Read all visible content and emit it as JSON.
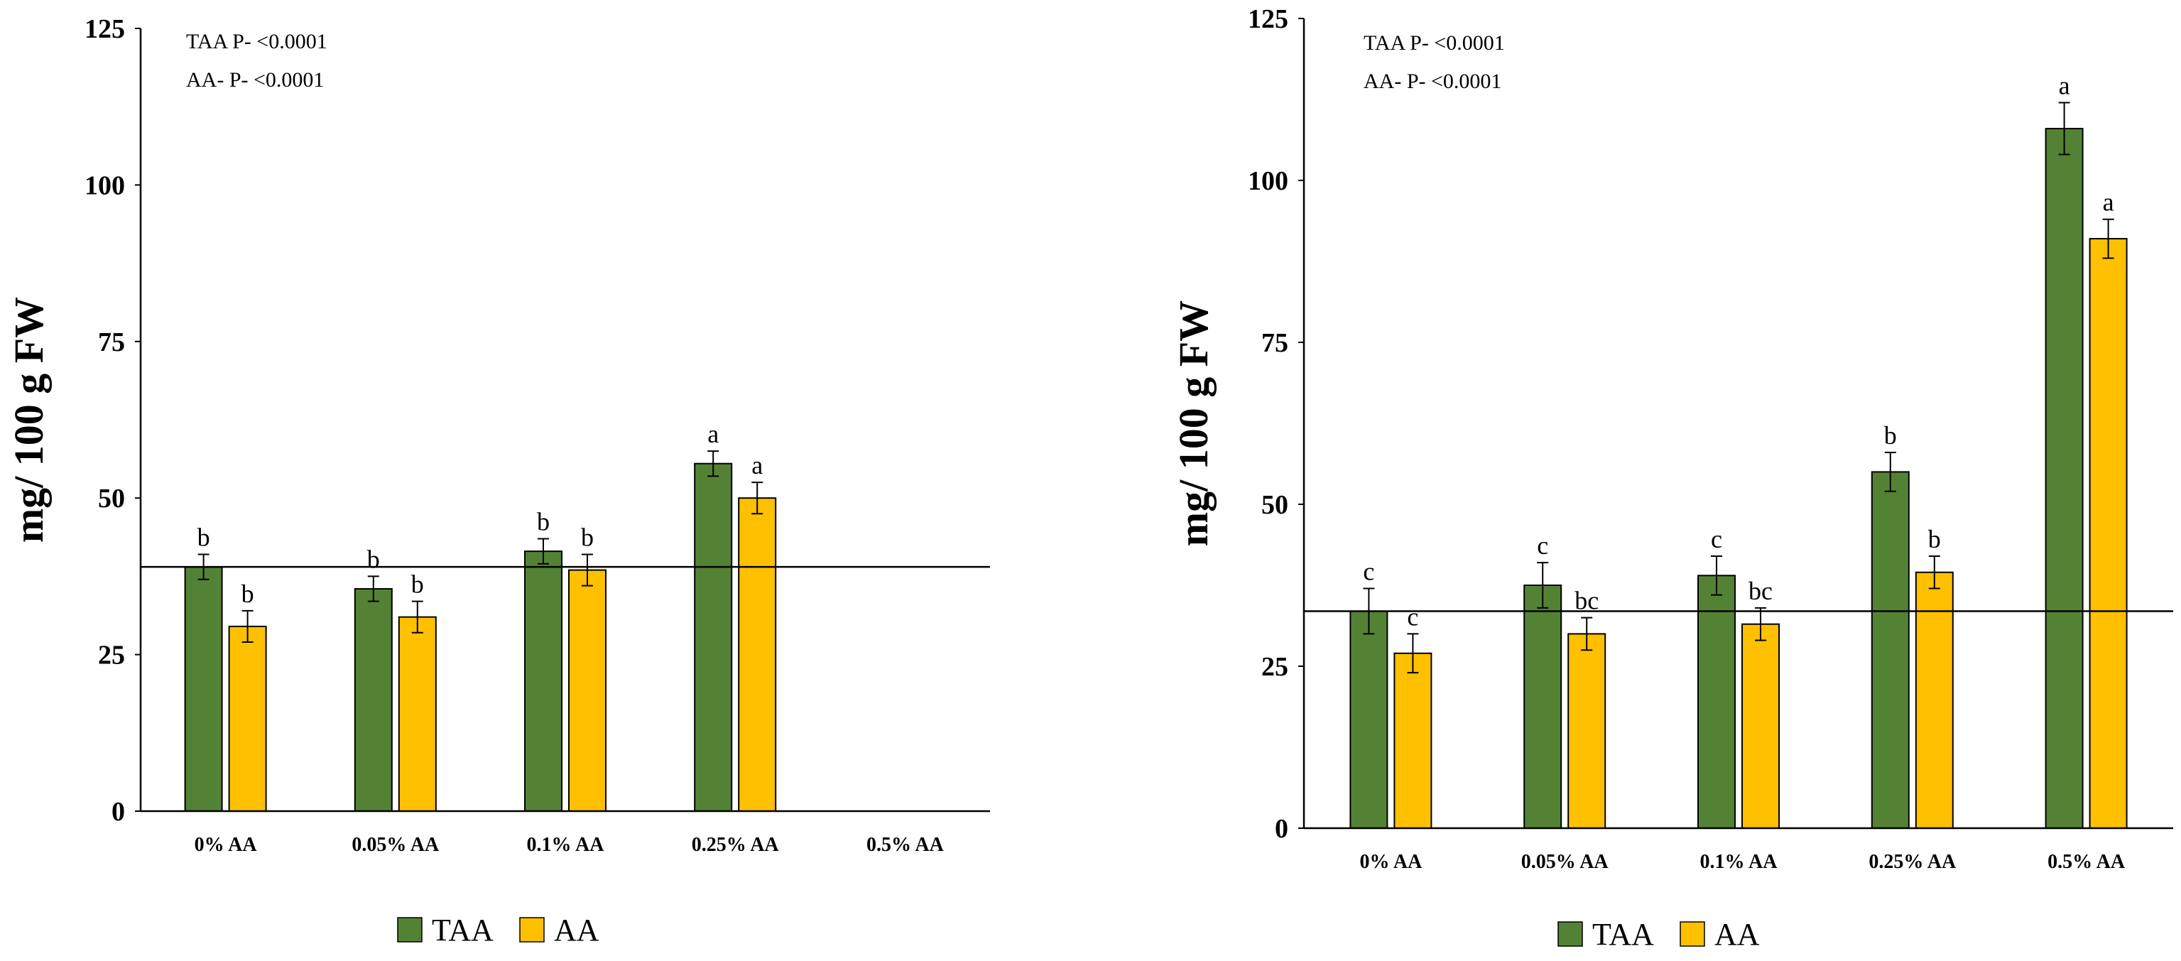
{
  "colors": {
    "taa": "#548235",
    "aa": "#FFC000",
    "axis": "#000000"
  },
  "chart_data": [
    {
      "type": "bar",
      "title": "",
      "xlabel": "",
      "ylabel": "mg/ 100 g FW",
      "ylim": [
        0,
        125
      ],
      "yticks": [
        "0",
        "25",
        "50",
        "75",
        "100",
        "125"
      ],
      "categories": [
        "0% AA",
        "0.05% AA",
        "0.1% AA",
        "0.25% AA",
        "0.5% AA"
      ],
      "annotations": [
        "TAA P- <0.0001",
        "AA- P- <0.0001"
      ],
      "reference_line": 39,
      "series": [
        {
          "name": "TAA",
          "values": [
            39,
            35.5,
            41.5,
            55.5,
            null
          ],
          "errors": [
            2,
            2,
            2,
            2,
            null
          ],
          "letters": [
            "b",
            "b",
            "b",
            "a",
            ""
          ]
        },
        {
          "name": "AA",
          "values": [
            29.5,
            31,
            38.5,
            50,
            null
          ],
          "errors": [
            2.5,
            2.5,
            2.5,
            2.5,
            null
          ],
          "letters": [
            "b",
            "b",
            "b",
            "a",
            ""
          ]
        }
      ],
      "legend": [
        "TAA",
        "AA"
      ]
    },
    {
      "type": "bar",
      "title": "",
      "xlabel": "",
      "ylabel": "mg/ 100 g FW",
      "ylim": [
        0,
        125
      ],
      "yticks": [
        "0",
        "25",
        "50",
        "75",
        "100",
        "125"
      ],
      "categories": [
        "0% AA",
        "0.05% AA",
        "0.1% AA",
        "0.25% AA",
        "0.5% AA"
      ],
      "annotations": [
        "TAA P- <0.0001",
        "AA- P- <0.0001"
      ],
      "reference_line": 33.5,
      "series": [
        {
          "name": "TAA",
          "values": [
            33.5,
            37.5,
            39,
            55,
            108
          ],
          "errors": [
            3.5,
            3.5,
            3,
            3,
            4
          ],
          "letters": [
            "c",
            "c",
            "c",
            "b",
            "a"
          ]
        },
        {
          "name": "AA",
          "values": [
            27,
            30,
            31.5,
            39.5,
            91
          ],
          "errors": [
            3,
            2.5,
            2.5,
            2.5,
            3
          ],
          "letters": [
            "c",
            "bc",
            "bc",
            "b",
            "a"
          ]
        }
      ],
      "legend": [
        "TAA",
        "AA"
      ]
    }
  ]
}
